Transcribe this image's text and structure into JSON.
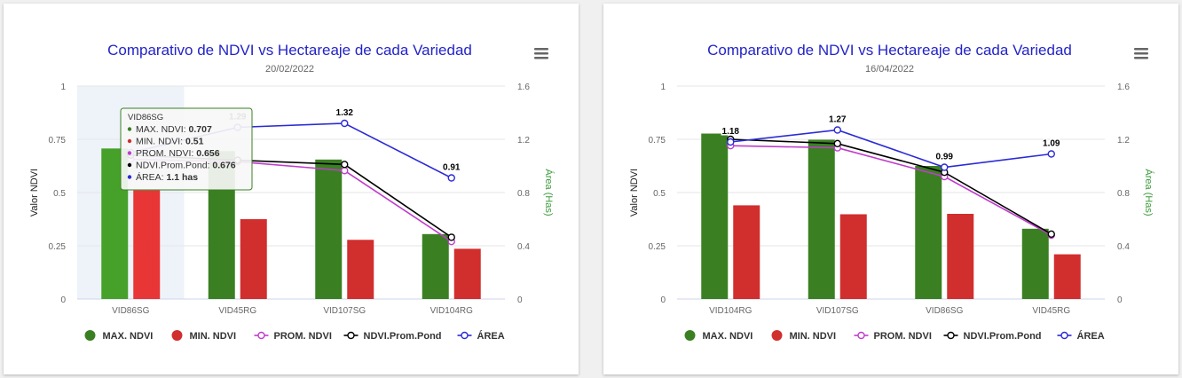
{
  "chart_data": [
    {
      "type": "bar",
      "title": "Comparativo de NDVI vs Hectareaje de cada Variedad",
      "subtitle": "20/02/2022",
      "categories": [
        "VID86SG",
        "VID45RG",
        "VID107SG",
        "VID104RG"
      ],
      "ylabel": "Valor NDVI",
      "ylim": [
        0,
        1
      ],
      "yticks": [
        "0",
        "0.25",
        "0.5",
        "0.75",
        "1"
      ],
      "y2label": "Área (Has)",
      "y2lim": [
        0,
        1.6
      ],
      "y2ticks": [
        "0",
        "0.4",
        "0.8",
        "1.2",
        "1.6"
      ],
      "series": [
        {
          "name": "MAX. NDVI",
          "type": "bar",
          "axis": "left",
          "color": "#3a8022",
          "values": [
            0.707,
            0.695,
            0.655,
            0.305
          ]
        },
        {
          "name": "MIN. NDVI",
          "type": "bar",
          "axis": "left",
          "color": "#d12e2e",
          "values": [
            0.51,
            0.375,
            0.278,
            0.236
          ]
        },
        {
          "name": "PROM. NDVI",
          "type": "line",
          "axis": "left",
          "color": "#c03ccc",
          "values": [
            0.656,
            0.645,
            0.603,
            0.27
          ]
        },
        {
          "name": "NDVI.Prom.Pond",
          "type": "line",
          "axis": "left",
          "color": "#000000",
          "values": [
            0.676,
            0.652,
            0.632,
            0.29
          ]
        },
        {
          "name": "ÁREA",
          "type": "line",
          "axis": "right",
          "color": "#2b2bd6",
          "values": [
            1.1,
            1.29,
            1.32,
            0.91
          ],
          "labels": [
            "",
            "1.29",
            "1.32",
            "0.91"
          ]
        }
      ],
      "highlight_index": 0,
      "tooltip": {
        "category": "VID86SG",
        "rows": [
          {
            "color": "#3a8022",
            "label": "MAX. NDVI: ",
            "value": "0.707"
          },
          {
            "color": "#d12e2e",
            "label": "MIN. NDVI: ",
            "value": "0.51"
          },
          {
            "color": "#c03ccc",
            "label": "PROM. NDVI: ",
            "value": "0.656"
          },
          {
            "color": "#000000",
            "label": "NDVI.Prom.Pond: ",
            "value": "0.676"
          },
          {
            "color": "#2b2bd6",
            "label": "ÁREA: ",
            "value": "1.1 has"
          }
        ]
      },
      "legend": "bottom"
    },
    {
      "type": "bar",
      "title": "Comparativo de NDVI vs Hectareaje de cada Variedad",
      "subtitle": "16/04/2022",
      "categories": [
        "VID104RG",
        "VID107SG",
        "VID86SG",
        "VID45RG"
      ],
      "ylabel": "Valor NDVI",
      "ylim": [
        0,
        1
      ],
      "yticks": [
        "0",
        "0.25",
        "0.5",
        "0.75",
        "1"
      ],
      "y2label": "Área (Has)",
      "y2lim": [
        0,
        1.6
      ],
      "y2ticks": [
        "0",
        "0.4",
        "0.8",
        "1.2",
        "1.6"
      ],
      "series": [
        {
          "name": "MAX. NDVI",
          "type": "bar",
          "axis": "left",
          "color": "#3a8022",
          "values": [
            0.777,
            0.748,
            0.625,
            0.33
          ]
        },
        {
          "name": "MIN. NDVI",
          "type": "bar",
          "axis": "left",
          "color": "#d12e2e",
          "values": [
            0.44,
            0.398,
            0.4,
            0.21
          ]
        },
        {
          "name": "PROM. NDVI",
          "type": "line",
          "axis": "left",
          "color": "#c03ccc",
          "values": [
            0.72,
            0.71,
            0.575,
            0.3
          ]
        },
        {
          "name": "NDVI.Prom.Pond",
          "type": "line",
          "axis": "left",
          "color": "#000000",
          "values": [
            0.75,
            0.73,
            0.595,
            0.305
          ]
        },
        {
          "name": "ÁREA",
          "type": "line",
          "axis": "right",
          "color": "#2b2bd6",
          "values": [
            1.18,
            1.27,
            0.99,
            1.09
          ],
          "labels": [
            "1.18",
            "1.27",
            "0.99",
            "1.09"
          ]
        }
      ],
      "highlight_index": null,
      "tooltip": null,
      "legend": "bottom"
    }
  ],
  "ui": {
    "menu_icon": "hamburger-menu-icon",
    "axis_title_colors": {
      "left": "#222222",
      "right": "#3a9a3a"
    },
    "grid_color": "#e6e6e6",
    "tick_color": "#666666"
  }
}
